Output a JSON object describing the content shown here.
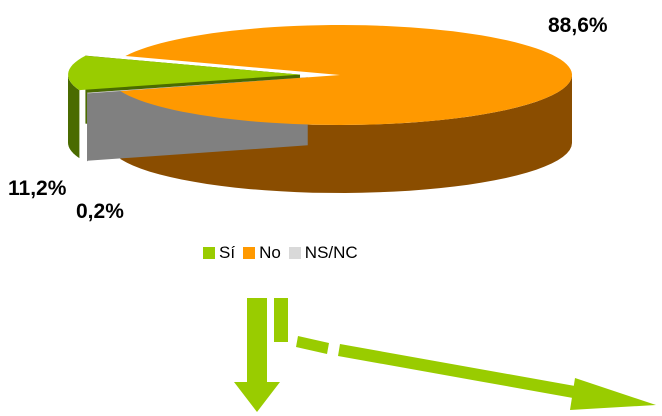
{
  "chart_data": {
    "type": "pie",
    "style": "3d-exploded",
    "categories": [
      "Sí",
      "No",
      "NS/NC"
    ],
    "values": [
      11.2,
      88.6,
      0.2
    ],
    "data_labels": [
      "11,2%",
      "88,6%",
      "0,2%"
    ],
    "colors": [
      "#99cc00",
      "#ff9900",
      "#d9d9d9"
    ],
    "side_colors": [
      "#4a6b00",
      "#8a4d00",
      "#808080"
    ],
    "title": "",
    "legend_position": "bottom"
  },
  "legend": {
    "items": [
      {
        "label": "Sí",
        "color": "#99cc00"
      },
      {
        "label": "No",
        "color": "#ff9900"
      },
      {
        "label": "NS/NC",
        "color": "#d9d9d9"
      }
    ]
  },
  "arrows": {
    "color": "#99cc00",
    "count": 2
  }
}
